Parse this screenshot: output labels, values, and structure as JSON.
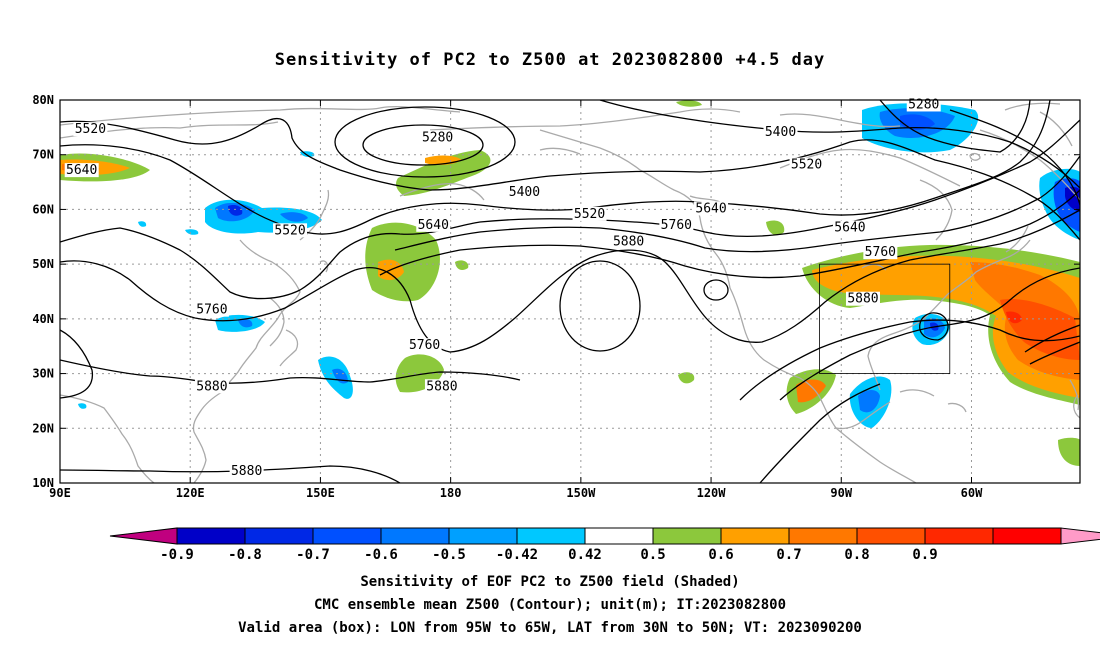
{
  "title": "Sensitivity of PC2 to Z500 at 2023082800 +4.5 day",
  "captions": [
    "Sensitivity of EOF PC2 to Z500 field (Shaded)",
    "CMC ensemble mean Z500 (Contour); unit(m); IT:2023082800",
    "Valid area (box): LON from 95W to 65W, LAT from 30N to 50N; VT: 2023090200"
  ],
  "map": {
    "lon_ticks": [
      {
        "lon": 90,
        "label": "90E"
      },
      {
        "lon": 120,
        "label": "120E"
      },
      {
        "lon": 150,
        "label": "150E"
      },
      {
        "lon": 180,
        "label": "180"
      },
      {
        "lon": 210,
        "label": "150W"
      },
      {
        "lon": 240,
        "label": "120W"
      },
      {
        "lon": 270,
        "label": "90W"
      },
      {
        "lon": 300,
        "label": "60W"
      }
    ],
    "lat_ticks": [
      {
        "lat": 10,
        "label": "10N"
      },
      {
        "lat": 20,
        "label": "20N"
      },
      {
        "lat": 30,
        "label": "30N"
      },
      {
        "lat": 40,
        "label": "40N"
      },
      {
        "lat": 50,
        "label": "50N"
      },
      {
        "lat": 60,
        "label": "60N"
      },
      {
        "lat": 70,
        "label": "70N"
      },
      {
        "lat": 80,
        "label": "80N"
      }
    ],
    "lon_range": [
      90,
      325
    ],
    "lat_range": [
      10,
      80
    ],
    "valid_box": {
      "lon": [
        265,
        295
      ],
      "lat": [
        30,
        50
      ]
    },
    "contour_labels": [
      {
        "text": "5520",
        "lon": 97,
        "lat": 74.5
      },
      {
        "text": "5640",
        "lon": 95,
        "lat": 67
      },
      {
        "text": "5280",
        "lon": 177,
        "lat": 73
      },
      {
        "text": "5400",
        "lon": 197,
        "lat": 63
      },
      {
        "text": "5520",
        "lon": 143,
        "lon_note": "",
        "lat": 56
      },
      {
        "text": "5520",
        "lon": 212,
        "lat": 59
      },
      {
        "text": "5640",
        "lon": 176,
        "lat": 57
      },
      {
        "text": "5640",
        "lon": 240,
        "lat": 60
      },
      {
        "text": "5760",
        "lon": 232,
        "lat": 57
      },
      {
        "text": "5880",
        "lon": 221,
        "lat": 54
      },
      {
        "text": "5400",
        "lon": 256,
        "lat": 74
      },
      {
        "text": "5520",
        "lon": 262,
        "lat": 68
      },
      {
        "text": "5280",
        "lon": 289,
        "lat": 79
      },
      {
        "text": "5640",
        "lon": 272,
        "lat": 56.5
      },
      {
        "text": "5760",
        "lon": 279,
        "lat": 52
      },
      {
        "text": "5880",
        "lon": 275,
        "lat": 43.5
      },
      {
        "text": "5760",
        "lon": 125,
        "lat": 41.5
      },
      {
        "text": "5760",
        "lon": 174,
        "lat": 35
      },
      {
        "text": "5880",
        "lon": 125,
        "lat": 27.5
      },
      {
        "text": "5880",
        "lon": 178,
        "lat": 27.5
      },
      {
        "text": "5880",
        "lon": 133,
        "lat": 12
      }
    ]
  },
  "colorbar": {
    "colors": [
      "#c0007f",
      "#0000c8",
      "#0028e6",
      "#0050ff",
      "#0078ff",
      "#00a0ff",
      "#00c8ff",
      "#ffffff",
      "#8cc83c",
      "#ffa000",
      "#ff7800",
      "#ff5000",
      "#ff2800",
      "#ff0000",
      "#ff9bc8"
    ],
    "labels": [
      "-0.9",
      "-0.8",
      "-0.7",
      "-0.6",
      "-0.5",
      "-0.42",
      "0.42",
      "0.5",
      "0.6",
      "0.7",
      "0.8",
      "0.9"
    ]
  },
  "colors": {
    "land": "#aaaaaa",
    "contour": "#000000",
    "grid": "#9a9a9a"
  }
}
